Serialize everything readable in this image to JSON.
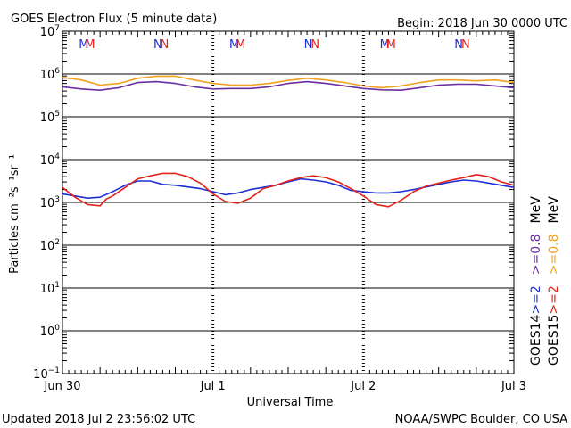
{
  "chart_data": {
    "type": "line",
    "title": "GOES Electron Flux (5 minute data)",
    "begin_label": "Begin: 2018 Jun 30 0000 UTC",
    "xlabel": "Universal Time",
    "ylabel": "Particles cm⁻²s⁻¹sr⁻¹",
    "updated": "Updated 2018 Jul  2 23:56:02 UTC",
    "credit": "NOAA/SWPC Boulder, CO USA",
    "x_ticks": [
      "Jun 30",
      "Jul 1",
      "Jul 2",
      "Jul 3"
    ],
    "xlim_hours": [
      0,
      72
    ],
    "y_scale": "log",
    "y_ticks": [
      {
        "base": "10",
        "exp": "7"
      },
      {
        "base": "10",
        "exp": "6"
      },
      {
        "base": "10",
        "exp": "5"
      },
      {
        "base": "10",
        "exp": "4"
      },
      {
        "base": "10",
        "exp": "3"
      },
      {
        "base": "10",
        "exp": "2"
      },
      {
        "base": "10",
        "exp": "1"
      },
      {
        "base": "10",
        "exp": "0"
      },
      {
        "base": "10",
        "exp": "−1"
      }
    ],
    "ylim_log10": [
      -1,
      7
    ],
    "threshold": {
      "log10": 3,
      "style": "dashed"
    },
    "markers": [
      {
        "label": "M",
        "hour": 3.4,
        "color": "#1f2fd6"
      },
      {
        "label": "M",
        "hour": 4.4,
        "color": "#e2231a"
      },
      {
        "label": "N",
        "hour": 15.2,
        "color": "#1f2fd6"
      },
      {
        "label": "N",
        "hour": 16.3,
        "color": "#e2231a"
      },
      {
        "label": "M",
        "hour": 27.4,
        "color": "#1f2fd6"
      },
      {
        "label": "M",
        "hour": 28.4,
        "color": "#e2231a"
      },
      {
        "label": "N",
        "hour": 39.2,
        "color": "#1f2fd6"
      },
      {
        "label": "N",
        "hour": 40.3,
        "color": "#e2231a"
      },
      {
        "label": "M",
        "hour": 51.4,
        "color": "#1f2fd6"
      },
      {
        "label": "M",
        "hour": 52.4,
        "color": "#e2231a"
      },
      {
        "label": "N",
        "hour": 63.2,
        "color": "#1f2fd6"
      },
      {
        "label": "N",
        "hour": 64.3,
        "color": "#e2231a"
      }
    ],
    "legend": {
      "placement": "right",
      "columns": [
        {
          "prefix": "GOES14",
          "items": [
            {
              "text": ">=2",
              "color": "#1f2fd6"
            },
            {
              "text": ">=0.8",
              "color": "#6a2ea0"
            },
            {
              "text": "MeV",
              "color": "#000000"
            }
          ]
        },
        {
          "prefix": "GOES15",
          "items": [
            {
              "text": ">=2",
              "color": "#e2231a"
            },
            {
              "text": ">=0.8",
              "color": "#f0a21f"
            },
            {
              "text": "MeV",
              "color": "#000000"
            }
          ]
        }
      ]
    },
    "series": [
      {
        "name": "GOES14 >=0.8 MeV",
        "color": "#6a2ea0",
        "hours": [
          0,
          3,
          6,
          9,
          12,
          15,
          18,
          21,
          24,
          27,
          30,
          33,
          36,
          39,
          42,
          45,
          48,
          51,
          54,
          57,
          60,
          63,
          66,
          69,
          72
        ],
        "log10": [
          5.7,
          5.65,
          5.62,
          5.68,
          5.8,
          5.82,
          5.78,
          5.7,
          5.65,
          5.66,
          5.66,
          5.7,
          5.78,
          5.82,
          5.78,
          5.72,
          5.66,
          5.63,
          5.62,
          5.68,
          5.74,
          5.76,
          5.76,
          5.72,
          5.68
        ]
      },
      {
        "name": "GOES15 >=0.8 MeV",
        "color": "#f0a21f",
        "hours": [
          0,
          3,
          6,
          9,
          12,
          15,
          18,
          21,
          24,
          27,
          30,
          33,
          36,
          39,
          42,
          45,
          48,
          51,
          54,
          57,
          60,
          63,
          66,
          69,
          72
        ],
        "log10": [
          5.92,
          5.86,
          5.74,
          5.78,
          5.9,
          5.95,
          5.95,
          5.86,
          5.78,
          5.74,
          5.74,
          5.78,
          5.85,
          5.9,
          5.86,
          5.8,
          5.72,
          5.68,
          5.72,
          5.8,
          5.86,
          5.86,
          5.84,
          5.86,
          5.8
        ]
      },
      {
        "name": "GOES14 >=2 MeV",
        "color": "#1f2fd6",
        "hours": [
          0,
          2,
          4,
          6,
          8,
          10,
          12,
          14,
          16,
          18,
          20,
          22,
          24,
          26,
          28,
          30,
          32,
          34,
          36,
          38,
          40,
          42,
          44,
          46,
          48,
          50,
          52,
          54,
          56,
          58,
          60,
          62,
          64,
          66,
          68,
          70,
          72
        ],
        "log10": [
          3.2,
          3.15,
          3.1,
          3.12,
          3.25,
          3.4,
          3.5,
          3.5,
          3.42,
          3.4,
          3.36,
          3.32,
          3.25,
          3.18,
          3.22,
          3.3,
          3.35,
          3.4,
          3.48,
          3.55,
          3.52,
          3.48,
          3.4,
          3.28,
          3.25,
          3.22,
          3.22,
          3.25,
          3.3,
          3.36,
          3.42,
          3.48,
          3.52,
          3.5,
          3.45,
          3.4,
          3.35
        ]
      },
      {
        "name": "GOES15 >=2 MeV",
        "color": "#e2231a",
        "hours": [
          0,
          2,
          4,
          6,
          7,
          8,
          10,
          12,
          14,
          16,
          18,
          20,
          22,
          24,
          26,
          28,
          30,
          32,
          34,
          36,
          38,
          40,
          42,
          44,
          46,
          48,
          50,
          52,
          54,
          56,
          58,
          60,
          62,
          64,
          66,
          68,
          70,
          72
        ],
        "log10": [
          3.35,
          3.12,
          2.95,
          2.92,
          3.08,
          3.15,
          3.35,
          3.55,
          3.62,
          3.68,
          3.68,
          3.6,
          3.45,
          3.2,
          3.02,
          2.98,
          3.1,
          3.32,
          3.4,
          3.5,
          3.58,
          3.62,
          3.58,
          3.48,
          3.32,
          3.15,
          2.95,
          2.9,
          3.05,
          3.25,
          3.38,
          3.45,
          3.52,
          3.58,
          3.65,
          3.6,
          3.48,
          3.4
        ]
      }
    ]
  }
}
